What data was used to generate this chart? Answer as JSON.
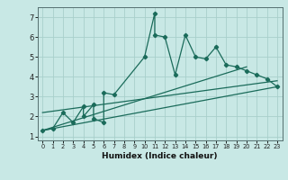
{
  "title": "",
  "xlabel": "Humidex (Indice chaleur)",
  "xlim": [
    -0.5,
    23.5
  ],
  "ylim": [
    0.8,
    7.5
  ],
  "xticks": [
    0,
    1,
    2,
    3,
    4,
    5,
    6,
    7,
    8,
    9,
    10,
    11,
    12,
    13,
    14,
    15,
    16,
    17,
    18,
    19,
    20,
    21,
    22,
    23
  ],
  "yticks": [
    1,
    2,
    3,
    4,
    5,
    6,
    7
  ],
  "bg_color": "#c8e8e5",
  "grid_color": "#a8cfcb",
  "line_color": "#1a6b5a",
  "scatter_x": [
    0,
    1,
    2,
    3,
    4,
    4,
    5,
    5,
    6,
    6,
    7,
    10,
    11,
    11,
    12,
    13,
    14,
    15,
    16,
    17,
    18,
    19,
    20,
    21,
    22,
    23
  ],
  "scatter_y": [
    1.3,
    1.4,
    2.2,
    1.7,
    2.5,
    2.0,
    2.6,
    1.9,
    1.7,
    3.2,
    3.1,
    5.0,
    7.2,
    6.1,
    6.0,
    4.1,
    6.1,
    5.0,
    4.9,
    5.5,
    4.6,
    4.5,
    4.3,
    4.1,
    3.9,
    3.5
  ],
  "trend1_x": [
    0,
    23
  ],
  "trend1_y": [
    1.3,
    3.5
  ],
  "trend2_x": [
    0,
    20
  ],
  "trend2_y": [
    1.3,
    4.5
  ],
  "trend3_x": [
    0,
    23
  ],
  "trend3_y": [
    2.2,
    3.8
  ]
}
